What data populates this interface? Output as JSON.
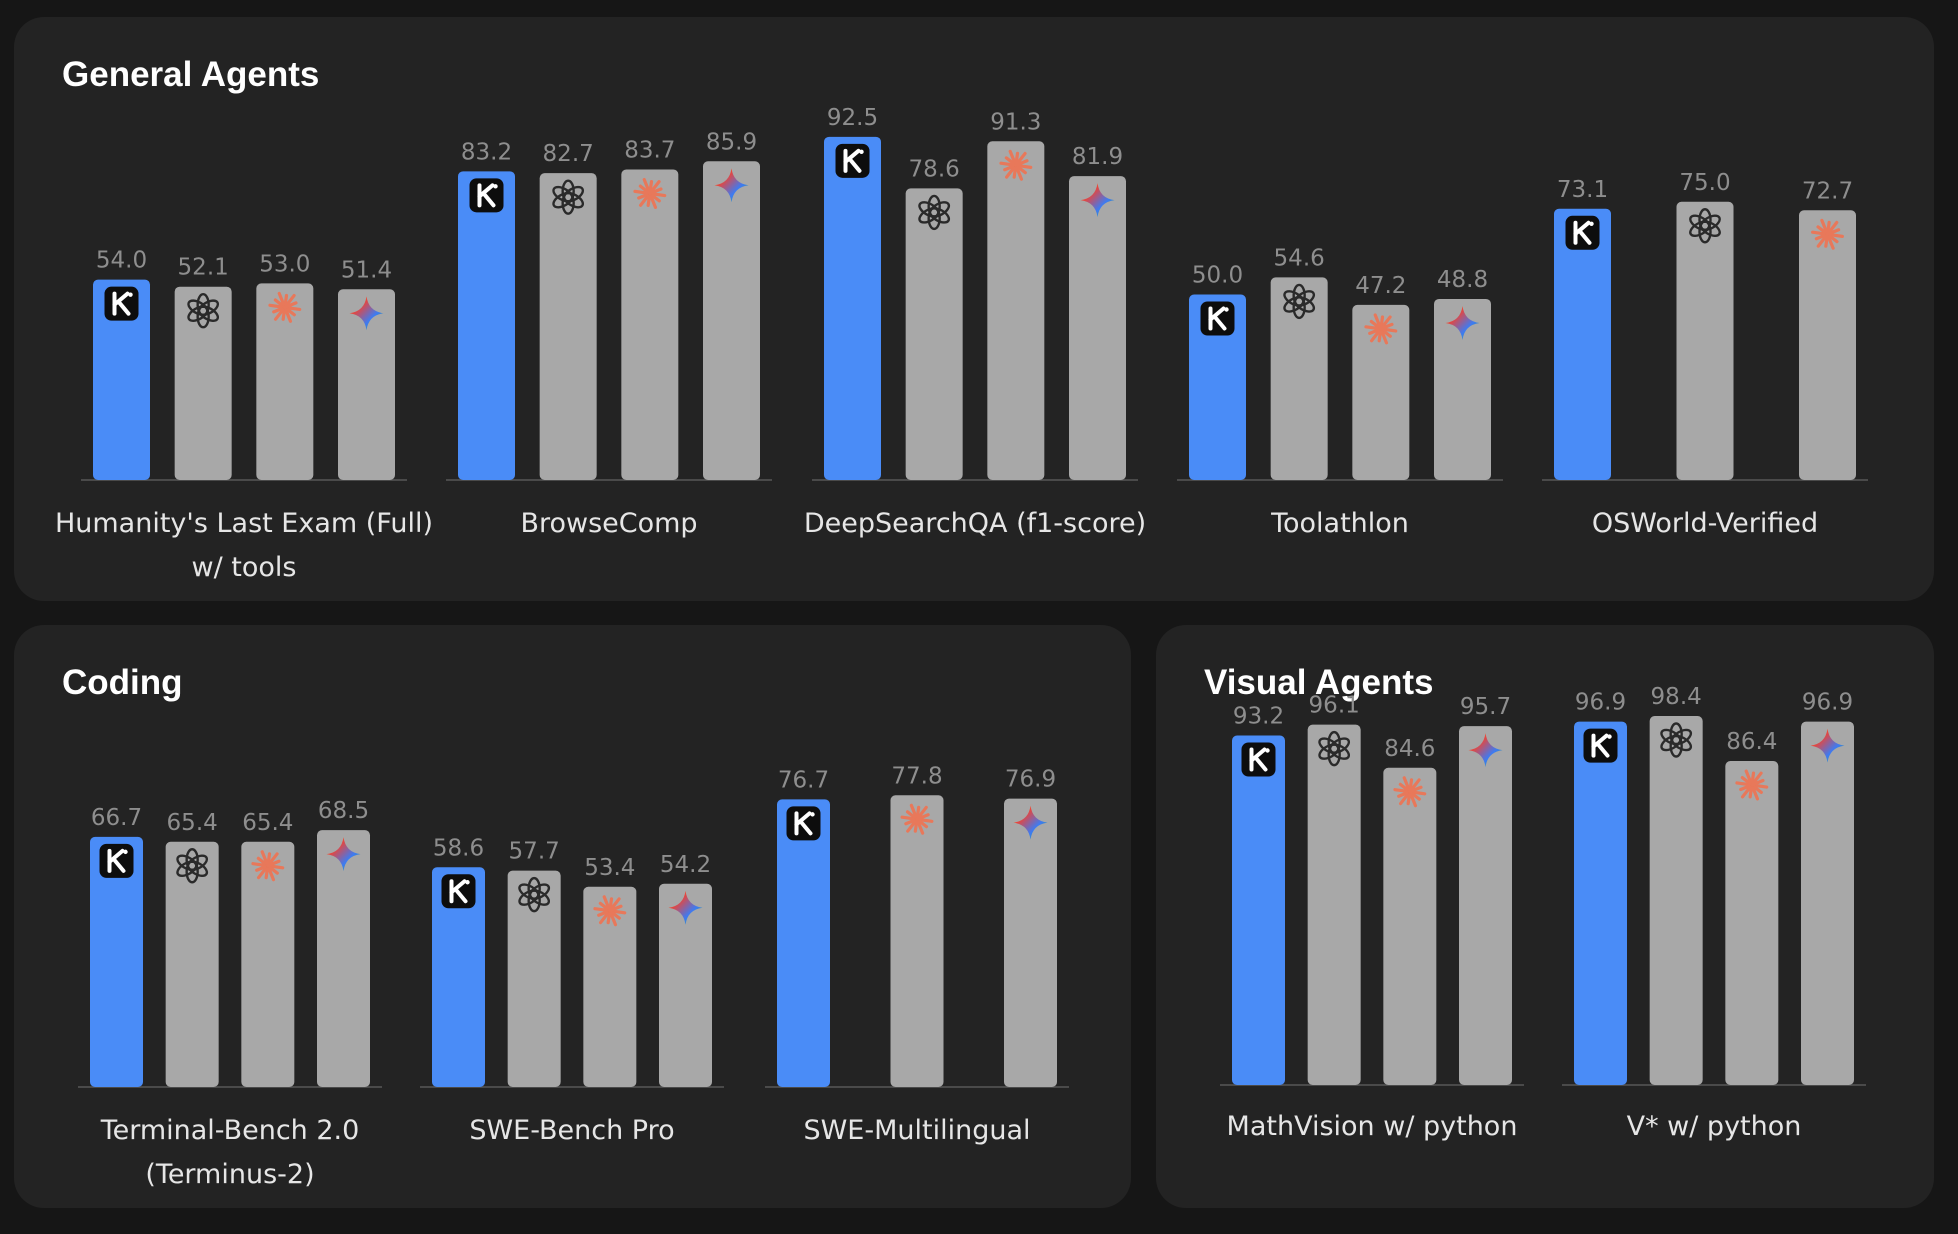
{
  "colors": {
    "kimi_bar": "#4a8cf7",
    "other_bar": "#a8a8a8",
    "panel_bg": "#232323",
    "page_bg": "#161616",
    "claude": "#e8785a"
  },
  "chart_data": [
    {
      "id": "general",
      "type": "bar",
      "title": "General Agents",
      "ylim": [
        0,
        100
      ],
      "groups": [
        {
          "label": [
            "Humanity's Last Exam (Full)",
            "w/ tools"
          ],
          "bars": [
            {
              "model_icon": "kimi-icon",
              "value": 54.0
            },
            {
              "model_icon": "openai-icon",
              "value": 52.1
            },
            {
              "model_icon": "claude-icon",
              "value": 53.0
            },
            {
              "model_icon": "gemini-icon",
              "value": 51.4
            }
          ]
        },
        {
          "label": [
            "BrowseComp"
          ],
          "bars": [
            {
              "model_icon": "kimi-icon",
              "value": 83.2
            },
            {
              "model_icon": "openai-icon",
              "value": 82.7
            },
            {
              "model_icon": "claude-icon",
              "value": 83.7
            },
            {
              "model_icon": "gemini-icon",
              "value": 85.9
            }
          ]
        },
        {
          "label": [
            "DeepSearchQA (f1-score)"
          ],
          "bars": [
            {
              "model_icon": "kimi-icon",
              "value": 92.5
            },
            {
              "model_icon": "openai-icon",
              "value": 78.6
            },
            {
              "model_icon": "claude-icon",
              "value": 91.3
            },
            {
              "model_icon": "gemini-icon",
              "value": 81.9
            }
          ]
        },
        {
          "label": [
            "Toolathlon"
          ],
          "bars": [
            {
              "model_icon": "kimi-icon",
              "value": 50.0
            },
            {
              "model_icon": "openai-icon",
              "value": 54.6
            },
            {
              "model_icon": "claude-icon",
              "value": 47.2
            },
            {
              "model_icon": "gemini-icon",
              "value": 48.8
            }
          ]
        },
        {
          "label": [
            "OSWorld-Verified"
          ],
          "bars": [
            {
              "model_icon": "kimi-icon",
              "value": 73.1
            },
            {
              "model_icon": "openai-icon",
              "value": 75.0
            },
            {
              "model_icon": "claude-icon",
              "value": 72.7
            }
          ]
        }
      ]
    },
    {
      "id": "coding",
      "type": "bar",
      "title": "Coding",
      "ylim": [
        0,
        100
      ],
      "groups": [
        {
          "label": [
            "Terminal-Bench 2.0",
            "(Terminus-2)"
          ],
          "bars": [
            {
              "model_icon": "kimi-icon",
              "value": 66.7
            },
            {
              "model_icon": "openai-icon",
              "value": 65.4
            },
            {
              "model_icon": "claude-icon",
              "value": 65.4
            },
            {
              "model_icon": "gemini-icon",
              "value": 68.5
            }
          ]
        },
        {
          "label": [
            "SWE-Bench Pro"
          ],
          "bars": [
            {
              "model_icon": "kimi-icon",
              "value": 58.6
            },
            {
              "model_icon": "openai-icon",
              "value": 57.7
            },
            {
              "model_icon": "claude-icon",
              "value": 53.4
            },
            {
              "model_icon": "gemini-icon",
              "value": 54.2
            }
          ]
        },
        {
          "label": [
            "SWE-Multilingual"
          ],
          "bars": [
            {
              "model_icon": "kimi-icon",
              "value": 76.7
            },
            {
              "model_icon": "claude-icon",
              "value": 77.8
            },
            {
              "model_icon": "gemini-icon",
              "value": 76.9
            }
          ]
        }
      ]
    },
    {
      "id": "visual",
      "type": "bar",
      "title": "Visual Agents",
      "ylim": [
        0,
        100
      ],
      "groups": [
        {
          "label": [
            "MathVision w/ python"
          ],
          "bars": [
            {
              "model_icon": "kimi-icon",
              "value": 93.2
            },
            {
              "model_icon": "openai-icon",
              "value": 96.1
            },
            {
              "model_icon": "claude-icon",
              "value": 84.6
            },
            {
              "model_icon": "gemini-icon",
              "value": 95.7
            }
          ]
        },
        {
          "label": [
            "V* w/ python"
          ],
          "bars": [
            {
              "model_icon": "kimi-icon",
              "value": 96.9
            },
            {
              "model_icon": "openai-icon",
              "value": 98.4
            },
            {
              "model_icon": "claude-icon",
              "value": 86.4
            },
            {
              "model_icon": "gemini-icon",
              "value": 96.9
            }
          ]
        }
      ]
    }
  ]
}
